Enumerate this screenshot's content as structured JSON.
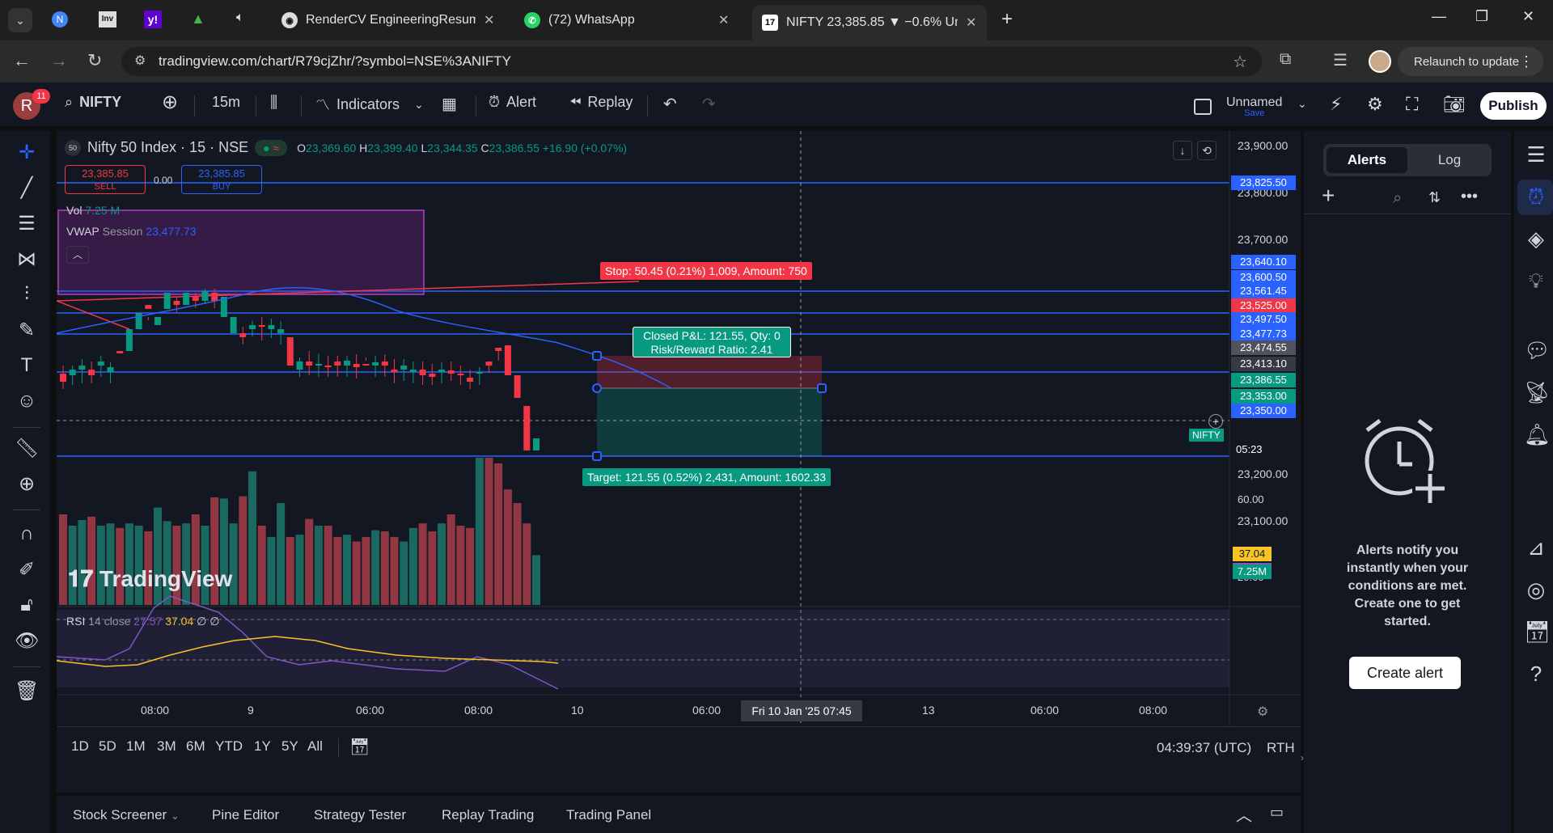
{
  "browser": {
    "tabs": [
      {
        "title": "RenderCV EngineeringResumes",
        "close": "✕"
      },
      {
        "title": "(72) WhatsApp",
        "close": "✕"
      },
      {
        "title": "NIFTY 23,385.85 ▼ −0.6% Unna",
        "close": "✕"
      }
    ],
    "url": "tradingview.com/chart/R79cjZhr/?symbol=NSE%3ANIFTY",
    "relaunch": "Relaunch to update"
  },
  "toolbar": {
    "avatar_letter": "R",
    "avatar_badge": "11",
    "symbol": "NIFTY",
    "interval": "15m",
    "indicators": "Indicators",
    "alert": "Alert",
    "replay": "Replay",
    "layout_name": "Unnamed",
    "layout_save": "Save",
    "publish": "Publish"
  },
  "chart": {
    "title": "Nifty 50 Index · 15 · NSE",
    "ohlc": {
      "o_label": "O",
      "o": "23,369.60",
      "h_label": "H",
      "h": "23,399.40",
      "l_label": "L",
      "l": "23,344.35",
      "c_label": "C",
      "c": "23,386.55",
      "change": "+16.90 (+0.07%)"
    },
    "sell_price": "23,385.85",
    "sell_label": "SELL",
    "spread": "0.00",
    "buy_price": "23,385.85",
    "buy_label": "BUY",
    "vol_label": "Vol",
    "vol_value": "7.25 M",
    "vwap_label": "VWAP",
    "vwap_session": "Session",
    "vwap_value": "23,477.73",
    "stop_label": "Stop: 50.45 (0.21%) 1,009, Amount: 750",
    "target_label": "Target: 121.55 (0.52%) 2,431, Amount: 1602.33",
    "pnl_line1": "Closed P&L: 121.55, Qty: 0",
    "pnl_line2": "Risk/Reward Ratio: 2.41",
    "watermark": "TradingView",
    "rsi_label": "RSI",
    "rsi_params": "14 close",
    "rsi_value": "27.57",
    "rsi_ma": "37.04",
    "rsi_extra": "∅ ∅",
    "symbol_tag": "NIFTY",
    "countdown": "05:23",
    "price_axis": [
      "23,900.00",
      "23,800.00",
      "23,700.00",
      "23,200.00",
      "23,100.00"
    ],
    "price_tags": [
      {
        "v": "23,825.50",
        "c": "#2962ff"
      },
      {
        "v": "23,640.10",
        "c": "#2962ff"
      },
      {
        "v": "23,600.50",
        "c": "#2962ff"
      },
      {
        "v": "23,561.45",
        "c": "#2962ff"
      },
      {
        "v": "23,525.00",
        "c": "#f23645"
      },
      {
        "v": "23,497.50",
        "c": "#2962ff"
      },
      {
        "v": "23,477.73",
        "c": "#2962ff"
      },
      {
        "v": "23,474.55",
        "c": "#50535e"
      },
      {
        "v": "23,413.10",
        "c": "#363a45"
      },
      {
        "v": "23,386.55",
        "c": "#089981"
      },
      {
        "v": "23,353.00",
        "c": "#089981"
      },
      {
        "v": "23,350.00",
        "c": "#2962ff"
      }
    ],
    "vol_tag": "7.25M",
    "rsi_axis": [
      "60.00",
      "20.00"
    ],
    "rsi_tags": [
      "37.04",
      "27.57"
    ],
    "time_axis": [
      "08:00",
      "9",
      "06:00",
      "08:00",
      "10",
      "06:00",
      "13",
      "06:00",
      "08:00"
    ],
    "crosshair_time": "Fri 10 Jan '25   07:45"
  },
  "ranges": [
    "1D",
    "5D",
    "1M",
    "3M",
    "6M",
    "YTD",
    "1Y",
    "5Y",
    "All"
  ],
  "clock": "04:39:37 (UTC)",
  "session": "RTH",
  "bottom_tabs": [
    "Stock Screener",
    "Pine Editor",
    "Strategy Tester",
    "Replay Trading",
    "Trading Panel"
  ],
  "alerts": {
    "tab_alerts": "Alerts",
    "tab_log": "Log",
    "empty_text": "Alerts notify you instantly when your conditions are met. Create one to get started.",
    "create": "Create alert"
  }
}
